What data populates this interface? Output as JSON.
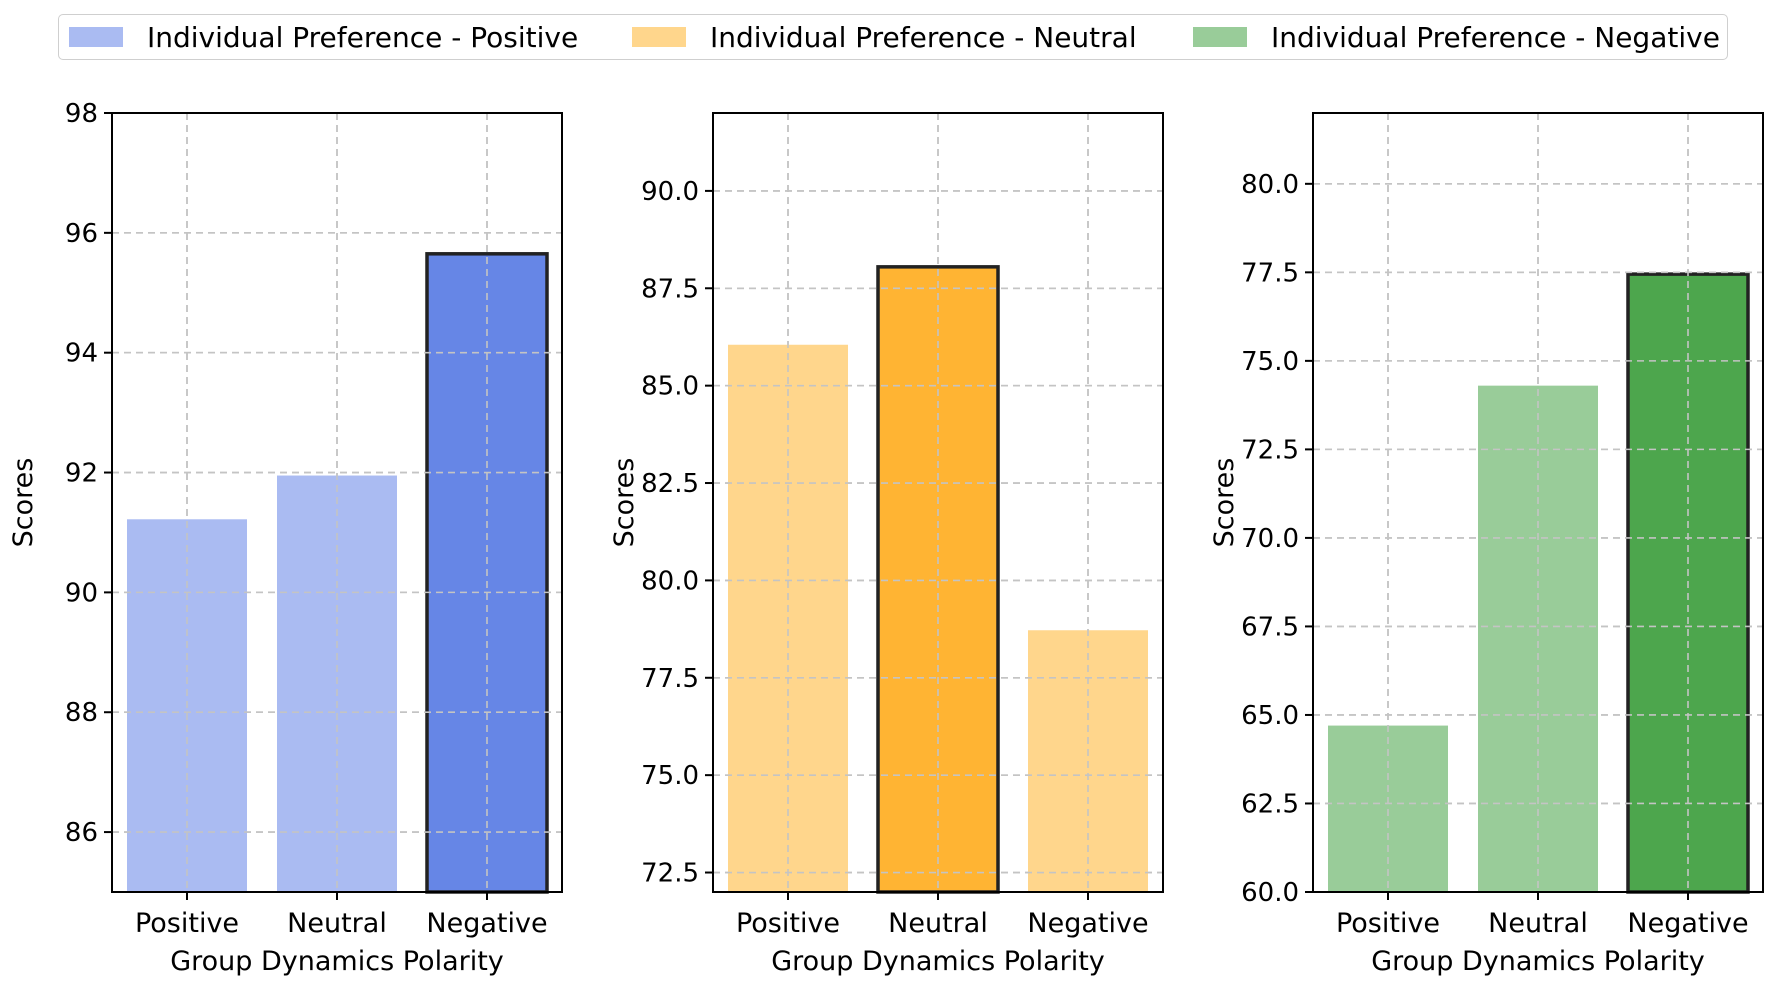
{
  "legend": {
    "items": [
      {
        "label": "Individual Preference - Positive",
        "color": "#aabbf2"
      },
      {
        "label": "Individual Preference - Neutral",
        "color": "#ffd68c"
      },
      {
        "label": "Individual Preference - Negative",
        "color": "#99cc99"
      }
    ]
  },
  "chart_data": [
    {
      "type": "bar",
      "categories": [
        "Positive",
        "Neutral",
        "Negative"
      ],
      "values": [
        91.22,
        91.95,
        95.65
      ],
      "highlight_index": 2,
      "xlabel": "Group Dynamics Polarity",
      "ylabel": "Scores",
      "ylim": [
        85,
        98
      ],
      "yticks": [
        86,
        88,
        90,
        92,
        94,
        96,
        98
      ],
      "ytick_labels": [
        "86",
        "88",
        "90",
        "92",
        "94",
        "96",
        "98"
      ],
      "light_color": "#aabbf2",
      "highlight_color": "#6686e6",
      "grid": true
    },
    {
      "type": "bar",
      "categories": [
        "Positive",
        "Neutral",
        "Negative"
      ],
      "values": [
        86.05,
        88.05,
        78.72
      ],
      "highlight_index": 1,
      "xlabel": "Group Dynamics Polarity",
      "ylabel": "Scores",
      "ylim": [
        72,
        92
      ],
      "yticks": [
        72.5,
        75.0,
        77.5,
        80.0,
        82.5,
        85.0,
        87.5,
        90.0
      ],
      "ytick_labels": [
        "72.5",
        "75.0",
        "77.5",
        "80.0",
        "82.5",
        "85.0",
        "87.5",
        "90.0"
      ],
      "light_color": "#ffd68c",
      "highlight_color": "#ffb433",
      "grid": true
    },
    {
      "type": "bar",
      "categories": [
        "Positive",
        "Neutral",
        "Negative"
      ],
      "values": [
        64.7,
        74.3,
        77.45
      ],
      "highlight_index": 2,
      "xlabel": "Group Dynamics Polarity",
      "ylabel": "Scores",
      "ylim": [
        60,
        82
      ],
      "yticks": [
        60.0,
        62.5,
        65.0,
        67.5,
        70.0,
        72.5,
        75.0,
        77.5,
        80.0
      ],
      "ytick_labels": [
        "60.0",
        "62.5",
        "65.0",
        "67.5",
        "70.0",
        "72.5",
        "75.0",
        "77.5",
        "80.0"
      ],
      "light_color": "#99cc99",
      "highlight_color": "#4da64d",
      "grid": true
    }
  ]
}
